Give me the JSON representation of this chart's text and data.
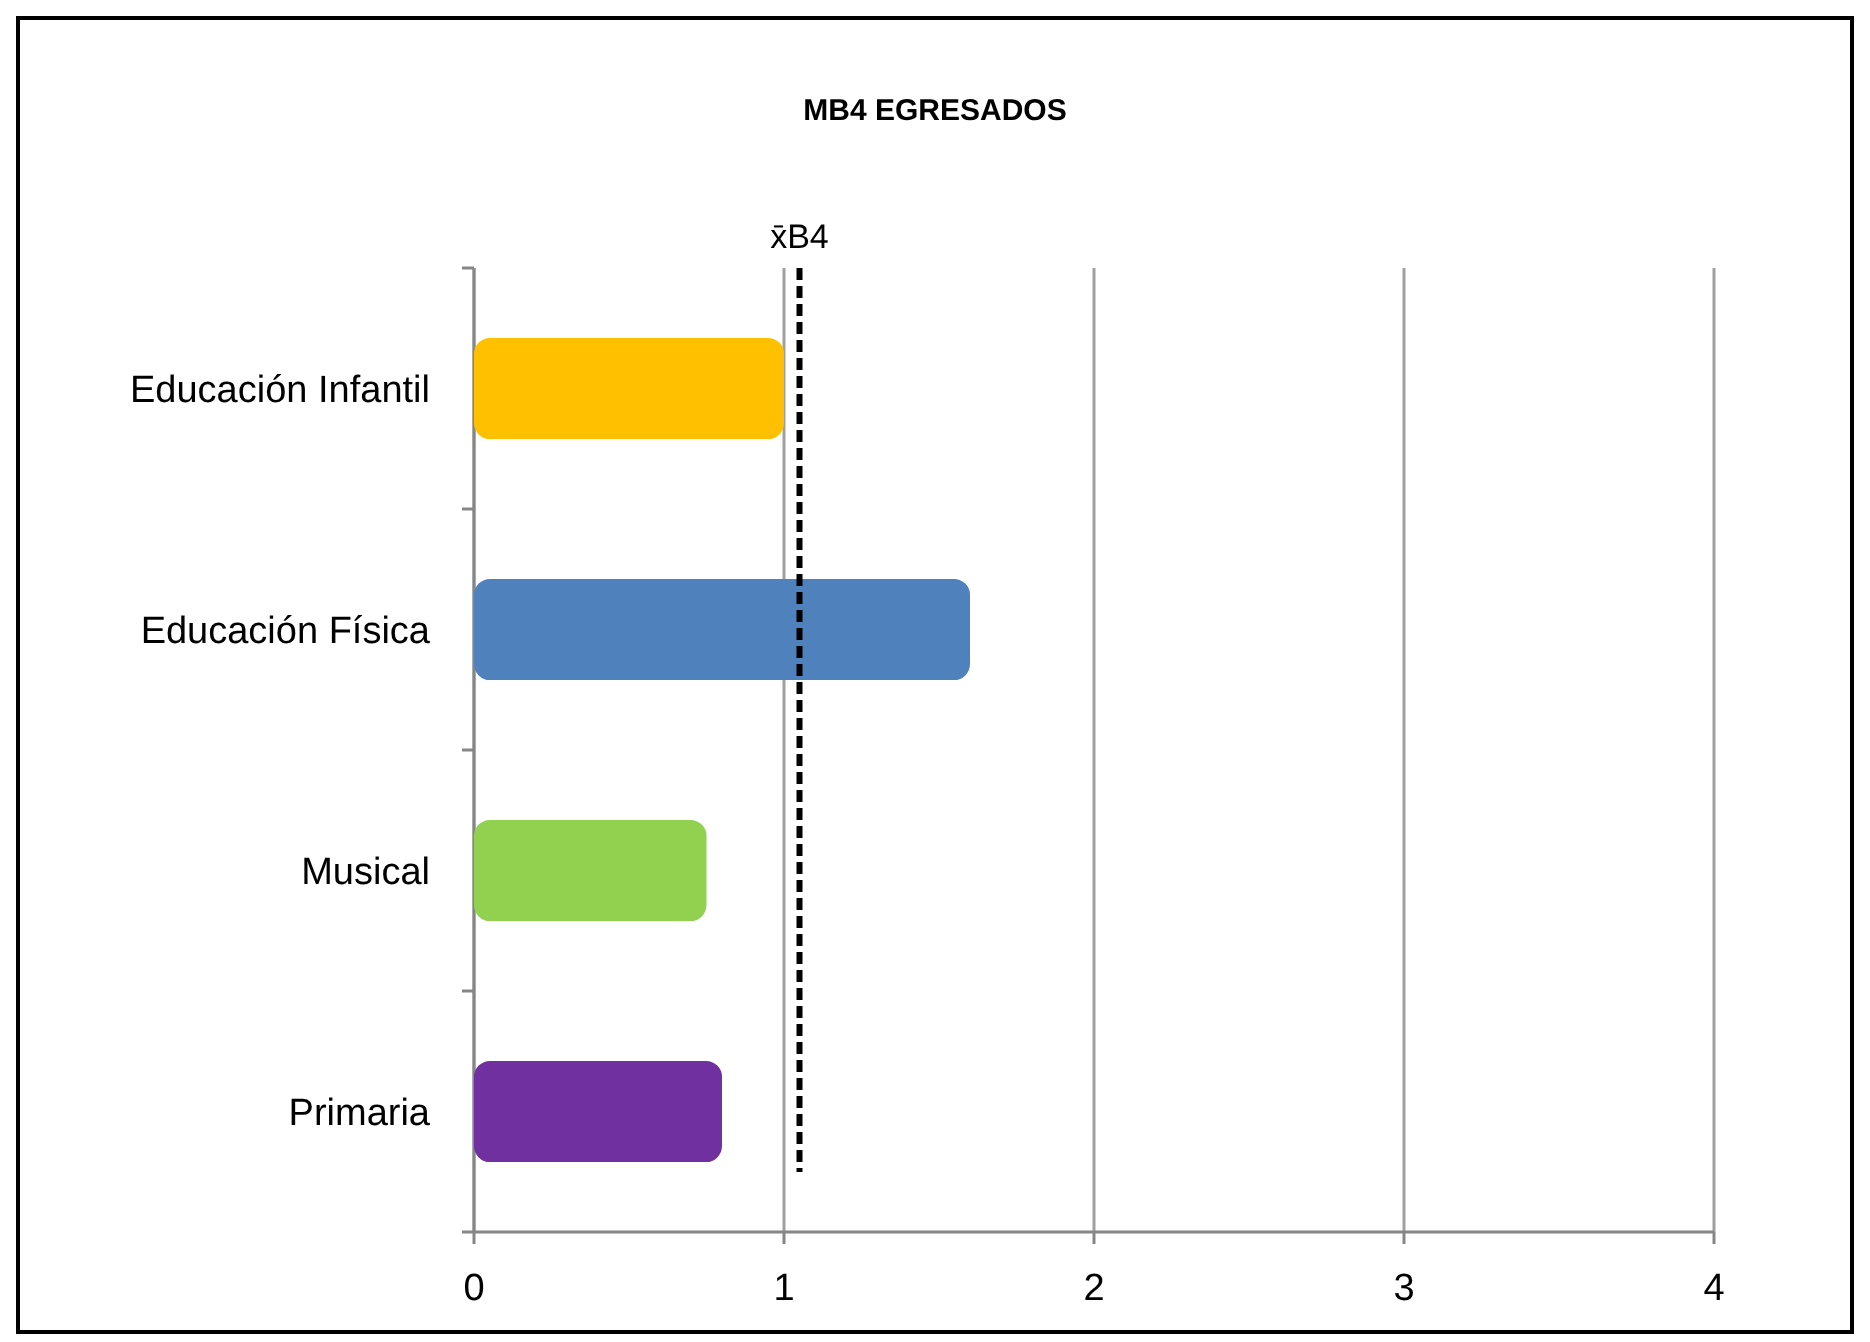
{
  "chart_data": {
    "type": "bar",
    "orientation": "horizontal",
    "title": "MB4 EGRESADOS",
    "categories": [
      "Educación Infantil",
      "Educación Física",
      "Musical",
      "Primaria"
    ],
    "values": [
      1.0,
      1.6,
      0.75,
      0.8
    ],
    "colors": [
      "#ffc000",
      "#4f81bd",
      "#92d050",
      "#7030a0"
    ],
    "xlim": [
      0,
      4
    ],
    "xticks": [
      0,
      1,
      2,
      3,
      4
    ],
    "grid": "x",
    "ref_lines": [
      {
        "axis": "x",
        "value": 1.05,
        "label": "x̄B4",
        "color": "#000000",
        "line_style": "dashed"
      }
    ]
  }
}
